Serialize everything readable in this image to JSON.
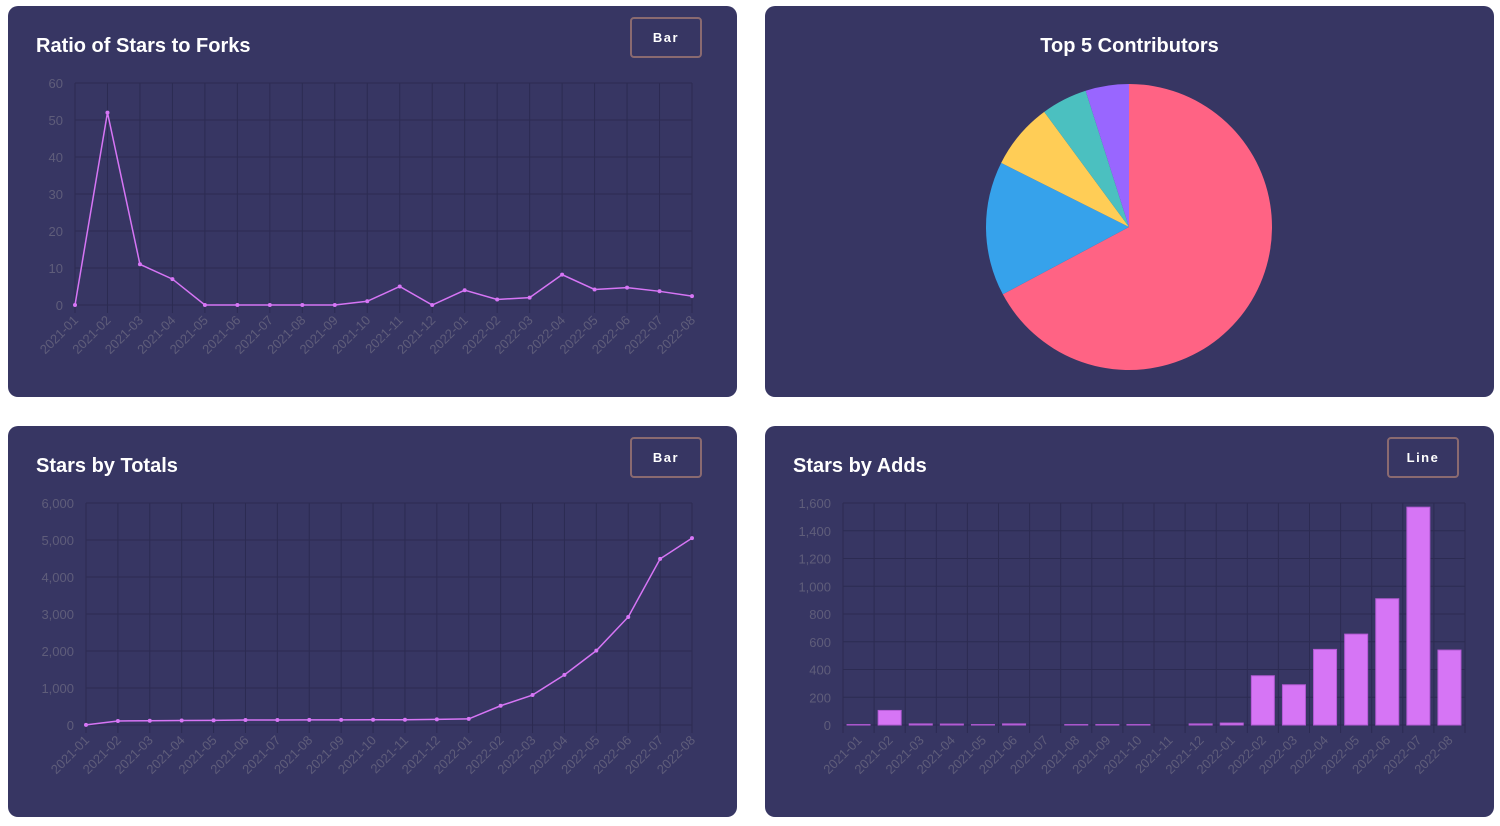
{
  "panels": {
    "ratio": {
      "title": "Ratio of Stars to Forks",
      "toggle_label": "Bar"
    },
    "contributors": {
      "title": "Top 5 Contributors"
    },
    "totals": {
      "title": "Stars by Totals",
      "toggle_label": "Bar"
    },
    "adds": {
      "title": "Stars by Adds",
      "toggle_label": "Line"
    }
  },
  "colors": {
    "panel_bg": "#373663",
    "series": "#d675f5",
    "grid": "#2c2b52",
    "tick_text": "#5f5d7a"
  },
  "chart_data": [
    {
      "id": "ratio",
      "type": "line",
      "title": "Ratio of Stars to Forks",
      "categories": [
        "2021-01",
        "2021-02",
        "2021-03",
        "2021-04",
        "2021-05",
        "2021-06",
        "2021-07",
        "2021-08",
        "2021-09",
        "2021-10",
        "2021-11",
        "2021-12",
        "2022-01",
        "2022-02",
        "2022-03",
        "2022-04",
        "2022-05",
        "2022-06",
        "2022-07",
        "2022-08"
      ],
      "values": [
        0,
        52,
        11,
        7,
        0,
        0,
        0,
        0,
        0,
        1,
        5,
        0,
        4,
        1.5,
        2,
        8.2,
        4.2,
        4.7,
        3.7,
        2.4
      ],
      "ylim": [
        0,
        60
      ],
      "yticks": [
        "0",
        "10",
        "20",
        "30",
        "40",
        "50",
        "60"
      ],
      "grid": true
    },
    {
      "id": "contributors",
      "type": "pie",
      "title": "Top 5 Contributors",
      "values": [
        67.2,
        15.2,
        7.5,
        5.2,
        4.9
      ],
      "colors": [
        "#ff6384",
        "#36a2eb",
        "#ffcd56",
        "#4bc0c0",
        "#9966ff"
      ]
    },
    {
      "id": "totals",
      "type": "line",
      "title": "Stars by Totals",
      "categories": [
        "2021-01",
        "2021-02",
        "2021-03",
        "2021-04",
        "2021-05",
        "2021-06",
        "2021-07",
        "2021-08",
        "2021-09",
        "2021-10",
        "2021-11",
        "2021-12",
        "2022-01",
        "2022-02",
        "2022-03",
        "2022-04",
        "2022-05",
        "2022-06",
        "2022-07",
        "2022-08"
      ],
      "values": [
        3,
        108,
        116,
        123,
        126,
        134,
        134,
        137,
        140,
        143,
        143,
        151,
        165,
        520,
        810,
        1355,
        2010,
        2920,
        4490,
        5050
      ],
      "ylim": [
        0,
        6000
      ],
      "yticks": [
        "0",
        "1,000",
        "2,000",
        "3,000",
        "4,000",
        "5,000",
        "6,000"
      ],
      "grid": true
    },
    {
      "id": "adds",
      "type": "bar",
      "title": "Stars by Adds",
      "categories": [
        "2021-01",
        "2021-02",
        "2021-03",
        "2021-04",
        "2021-05",
        "2021-06",
        "2021-07",
        "2021-08",
        "2021-09",
        "2021-10",
        "2021-11",
        "2021-12",
        "2022-01",
        "2022-02",
        "2022-03",
        "2022-04",
        "2022-05",
        "2022-06",
        "2022-07",
        "2022-08"
      ],
      "values": [
        3,
        105,
        8,
        7,
        3,
        8,
        0,
        3,
        3,
        3,
        0,
        8,
        14,
        355,
        290,
        545,
        655,
        910,
        1570,
        540
      ],
      "ylim": [
        0,
        1600
      ],
      "yticks": [
        "0",
        "200",
        "400",
        "600",
        "800",
        "1,000",
        "1,200",
        "1,400",
        "1,600"
      ],
      "grid": true
    }
  ]
}
